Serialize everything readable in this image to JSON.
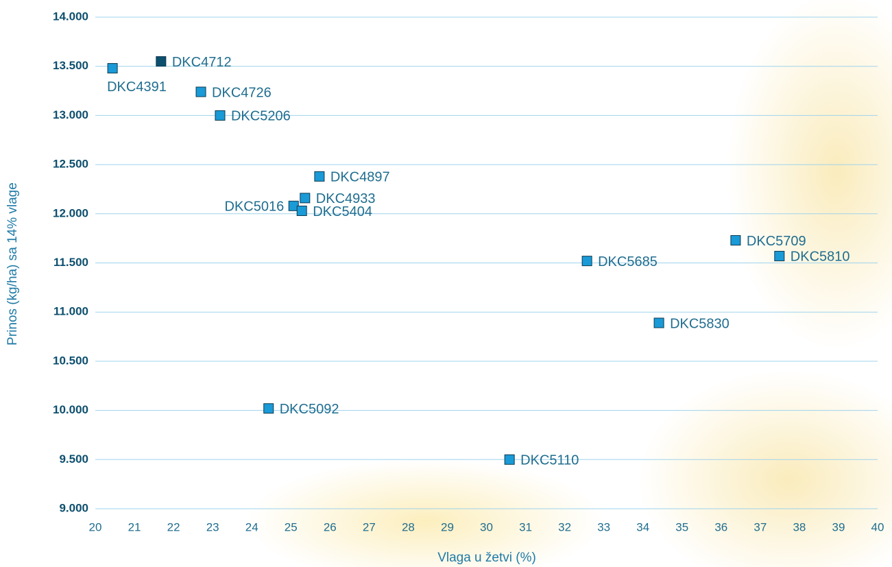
{
  "chart_data": {
    "type": "scatter",
    "x_label": "Vlaga u žetvi (%)",
    "y_label": "Prinos (kg/ha) sa 14% vlage",
    "labels": [
      "DKC4391",
      "DKC4712",
      "DKC4726",
      "DKC5206",
      "DKC4897",
      "DKC4933",
      "DKC5016",
      "DKC5404",
      "DKC5709",
      "DKC5810",
      "DKC5685",
      "DKC5830",
      "DKC5092",
      "DKC5110"
    ],
    "x": [
      20.44,
      21.68,
      22.7,
      23.19,
      25.73,
      25.36,
      25.07,
      25.28,
      36.37,
      37.49,
      32.57,
      34.41,
      24.43,
      30.59
    ],
    "values": [
      13480,
      13550,
      13240,
      13000,
      12380,
      12160,
      12080,
      12030,
      11730,
      11570,
      11520,
      10890,
      10020,
      9500
    ],
    "colors": [
      "#1a9ad6",
      "#0d4f6e",
      "#1a9ad6",
      "#1a9ad6",
      "#1a9ad6",
      "#1a9ad6",
      "#1a9ad6",
      "#1a9ad6",
      "#1a9ad6",
      "#1a9ad6",
      "#1a9ad6",
      "#1a9ad6",
      "#1a9ad6",
      "#1a9ad6"
    ],
    "xlim": [
      20,
      40
    ],
    "xticks": [
      20,
      21,
      22,
      23,
      24,
      25,
      26,
      27,
      28,
      29,
      30,
      31,
      32,
      33,
      34,
      35,
      36,
      37,
      38,
      39,
      40
    ],
    "ylim": [
      9000,
      14000
    ],
    "yticks": [
      {
        "value": 9000,
        "label": "9.000"
      },
      {
        "value": 9500,
        "label": "9.500"
      },
      {
        "value": 10000,
        "label": "10.000"
      },
      {
        "value": 10500,
        "label": "10.500"
      },
      {
        "value": 11000,
        "label": "11.000"
      },
      {
        "value": 11500,
        "label": "11.500"
      },
      {
        "value": 12000,
        "label": "12.000"
      },
      {
        "value": 12500,
        "label": "12.500"
      },
      {
        "value": 13000,
        "label": "13.000"
      },
      {
        "value": 13500,
        "label": "13.500"
      },
      {
        "value": 14000,
        "label": "14.000"
      }
    ],
    "grid": true
  }
}
